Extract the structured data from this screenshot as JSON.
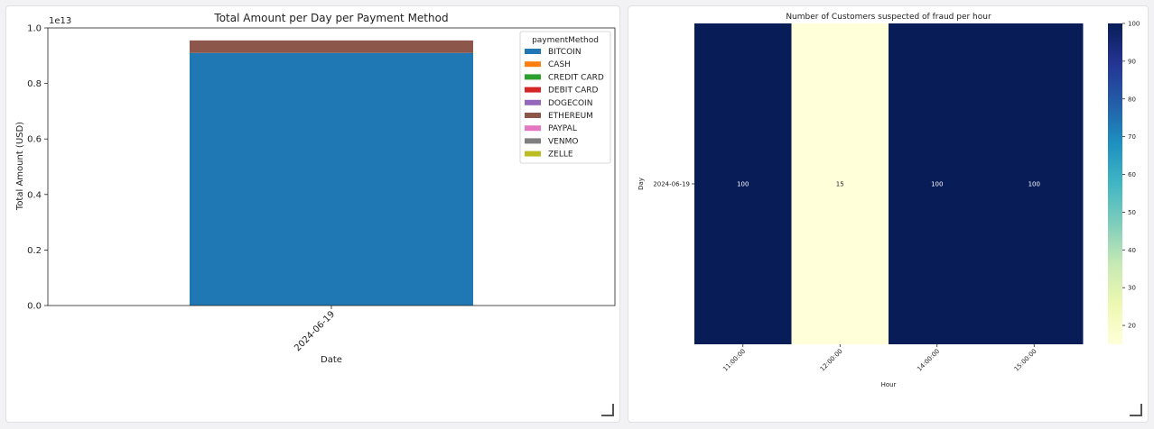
{
  "chart_data": [
    {
      "type": "bar",
      "stacked": true,
      "title": "Total Amount per Day per Payment Method",
      "xlabel": "Date",
      "ylabel": "Total Amount (USD)",
      "y_offset_label": "1e13",
      "categories": [
        "2024-06-19"
      ],
      "ylim": [
        0,
        1.0
      ],
      "yticks": [
        "0.0",
        "0.2",
        "0.4",
        "0.6",
        "0.8",
        "1.0"
      ],
      "legend_title": "paymentMethod",
      "legend_position": "top-right",
      "series": [
        {
          "name": "BITCOIN",
          "color": "#1f77b4",
          "values": [
            0.91
          ]
        },
        {
          "name": "CASH",
          "color": "#ff7f0e",
          "values": [
            0
          ]
        },
        {
          "name": "CREDIT CARD",
          "color": "#2ca02c",
          "values": [
            0
          ]
        },
        {
          "name": "DEBIT CARD",
          "color": "#d62728",
          "values": [
            0
          ]
        },
        {
          "name": "DOGECOIN",
          "color": "#9467bd",
          "values": [
            0
          ]
        },
        {
          "name": "ETHEREUM",
          "color": "#8c564b",
          "values": [
            0.045
          ]
        },
        {
          "name": "PAYPAL",
          "color": "#e377c2",
          "values": [
            0
          ]
        },
        {
          "name": "VENMO",
          "color": "#7f7f7f",
          "values": [
            0
          ]
        },
        {
          "name": "ZELLE",
          "color": "#bcbd22",
          "values": [
            0
          ]
        }
      ]
    },
    {
      "type": "heatmap",
      "title": "Number of Customers suspected of fraud per hour",
      "xlabel": "Hour",
      "ylabel": "Day",
      "x": [
        "11:00:00",
        "12:00:00",
        "14:00:00",
        "15:00:00"
      ],
      "y": [
        "2024-06-19"
      ],
      "values": [
        [
          100,
          15,
          100,
          100
        ]
      ],
      "value_labels": [
        "100",
        "15",
        "100",
        "100"
      ],
      "colormap": "YlGnBu",
      "vmin": 15,
      "vmax": 100,
      "colorbar_ticks": [
        "20",
        "30",
        "40",
        "50",
        "60",
        "70",
        "80",
        "90",
        "100"
      ]
    }
  ]
}
